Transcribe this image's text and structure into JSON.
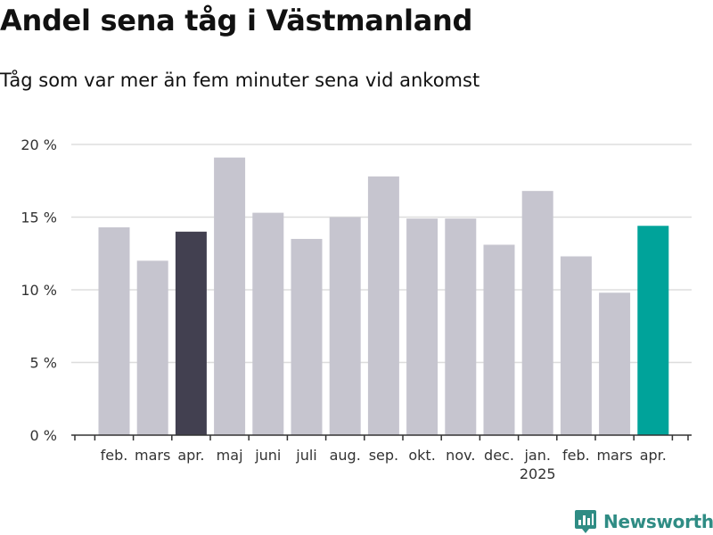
{
  "header": {
    "title": "Andel sena tåg i Västmanland",
    "subtitle": "Tåg som var mer än fem minuter sena vid ankomst"
  },
  "brand": {
    "name": "Newsworthy",
    "icon": "newsworthy-chart-logo-icon",
    "color": "#2f8c84"
  },
  "chart_data": {
    "type": "bar",
    "title": "Andel sena tåg i Västmanland",
    "subtitle": "Tåg som var mer än fem minuter sena vid ankomst",
    "categories": [
      "feb.",
      "mars",
      "apr.",
      "maj",
      "juni",
      "juli",
      "aug.",
      "sep.",
      "okt.",
      "nov.",
      "dec.",
      "jan.",
      "feb.",
      "mars",
      "apr."
    ],
    "year_labels": [
      {
        "index": 11,
        "label": "2025"
      }
    ],
    "values": [
      14.3,
      12.0,
      14.0,
      19.1,
      15.3,
      13.5,
      15.0,
      17.8,
      14.9,
      14.9,
      13.1,
      16.8,
      12.3,
      9.8,
      14.4
    ],
    "ylim": [
      0,
      20
    ],
    "yticks": [
      0,
      5,
      10,
      15,
      20
    ],
    "ytick_labels": [
      "0 %",
      "5 %",
      "10 %",
      "15 %",
      "20 %"
    ],
    "xlabel": "",
    "ylabel": "",
    "grid": true,
    "colors": {
      "default": "#c6c5cf",
      "highlight_previous_year": "#424050",
      "highlight_current": "#00a39a",
      "grid": "#dddddd",
      "axis": "#333333"
    },
    "highlights": [
      {
        "index": 2,
        "color_key": "highlight_previous_year"
      },
      {
        "index": 14,
        "color_key": "highlight_current"
      }
    ]
  }
}
